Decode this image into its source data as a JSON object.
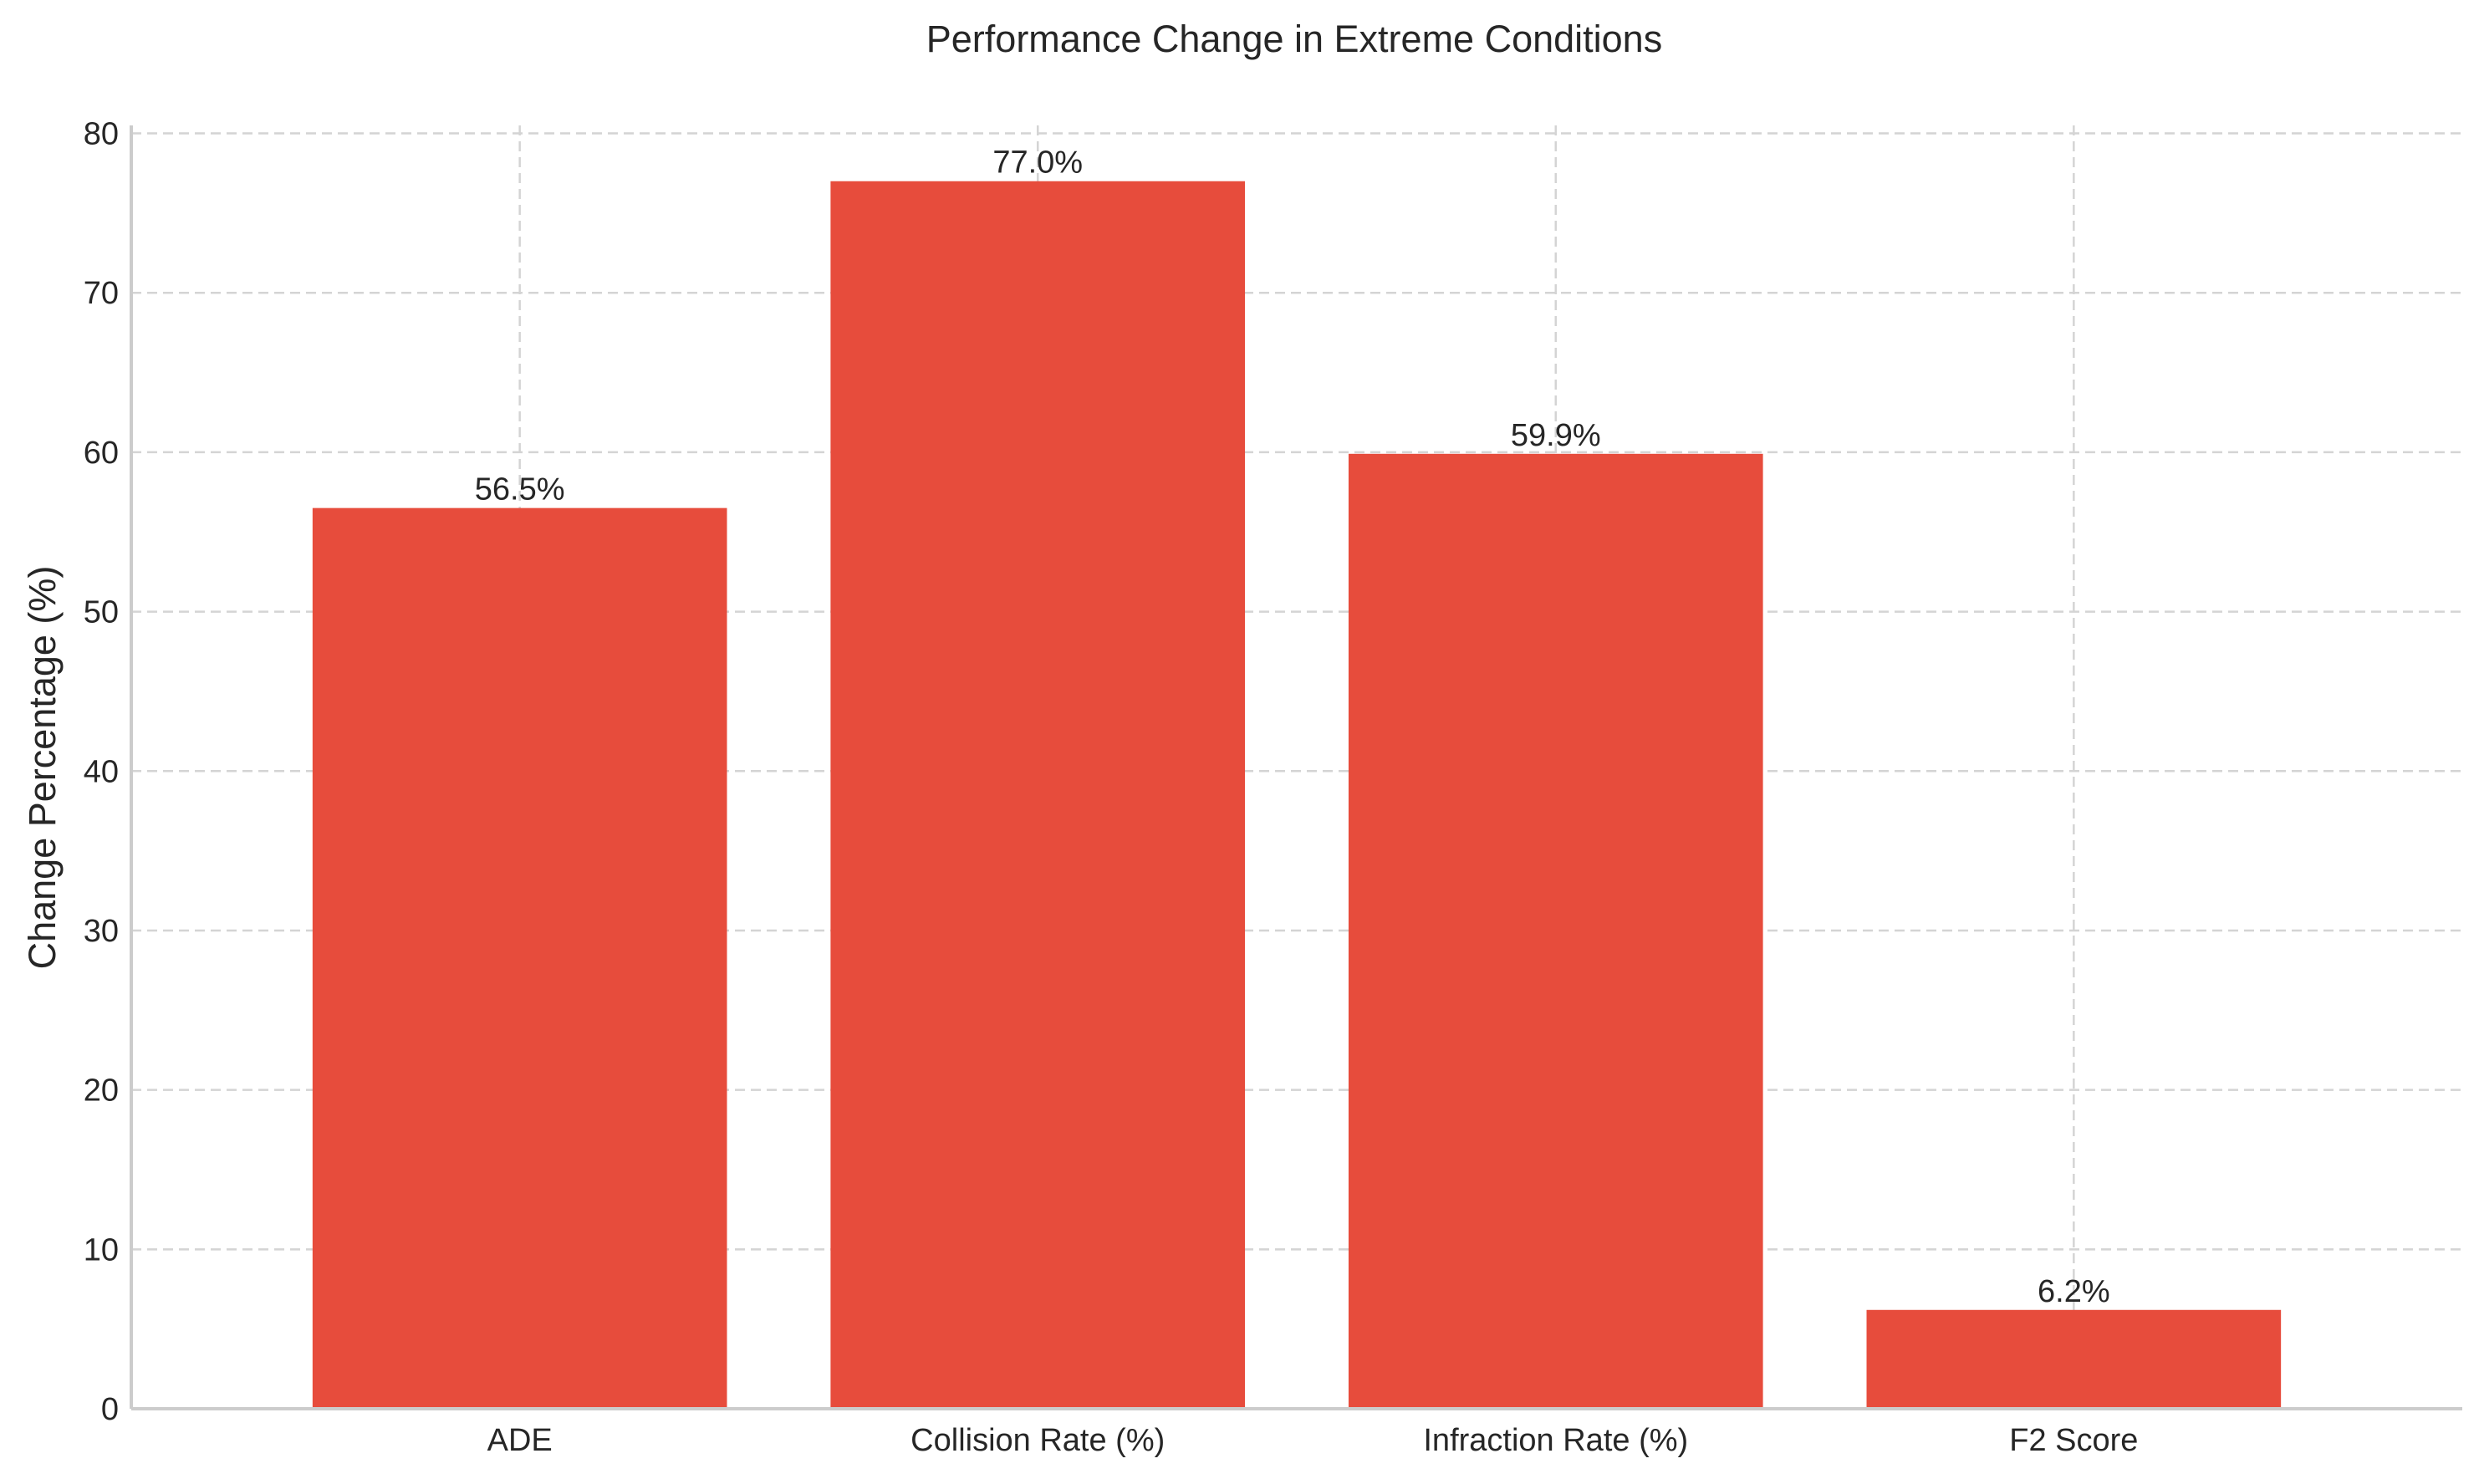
{
  "chart_data": {
    "type": "bar",
    "title": "Performance Change in Extreme Conditions",
    "xlabel": "",
    "ylabel": "Change Percentage (%)",
    "categories": [
      "ADE",
      "Collision Rate (%)",
      "Infraction Rate (%)",
      "F2 Score"
    ],
    "values": [
      56.5,
      77.0,
      59.9,
      6.2
    ],
    "data_labels": [
      "56.5%",
      "77.0%",
      "59.9%",
      "6.2%"
    ],
    "ylim": [
      0,
      80.5
    ],
    "yticks": [
      0,
      10,
      20,
      30,
      40,
      50,
      60,
      70,
      80
    ],
    "ytick_labels": [
      "0",
      "10",
      "20",
      "30",
      "40",
      "50",
      "60",
      "70",
      "80"
    ],
    "grid": true,
    "legend": "none",
    "colors": {
      "bar": "#e74c3c",
      "grid": "#d4d4d4",
      "axis": "#cccccc",
      "text": "#262626"
    }
  }
}
